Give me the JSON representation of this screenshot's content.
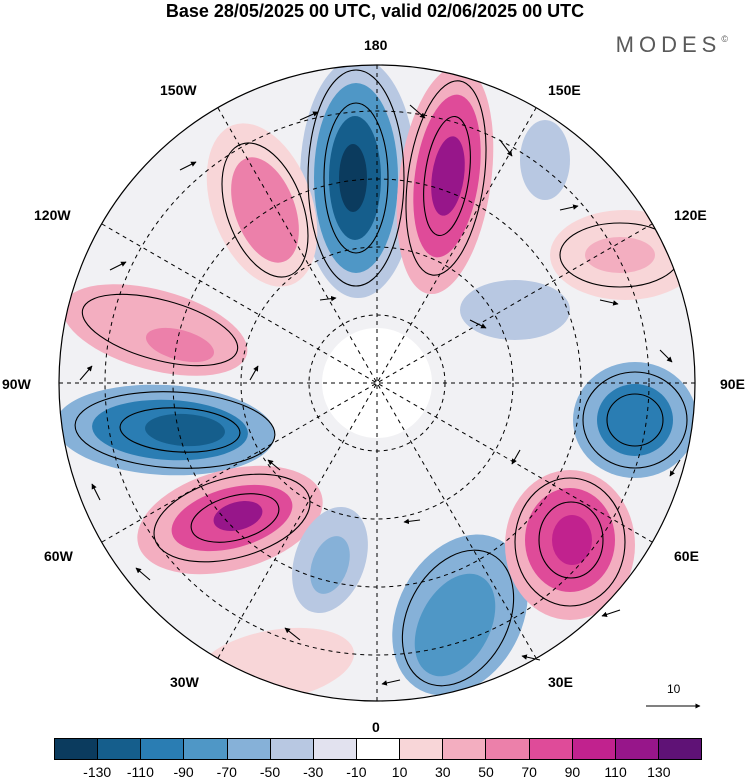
{
  "title": "Base 28/05/2025 00 UTC, valid 02/06/2025 00 UTC",
  "brand": "MODES",
  "brand_mark": "©",
  "longitude_labels": {
    "top": "180",
    "bottom": "0",
    "left": "90W",
    "right": "90E",
    "upper_left_1": "150W",
    "upper_left_2": "120W",
    "upper_right_1": "150E",
    "upper_right_2": "120E",
    "lower_left_1": "60W",
    "lower_left_2": "30W",
    "lower_right_1": "60E",
    "lower_right_2": "30E"
  },
  "reference_vector_label": "10",
  "colorbar": {
    "colors": [
      "#0b3b5e",
      "#155e8c",
      "#2a7db3",
      "#4f97c6",
      "#86b1d8",
      "#b8c8e2",
      "#e2e2ef",
      "#ffffff",
      "#f8d6d8",
      "#f3aec0",
      "#ec80aa",
      "#df4b99",
      "#c1228e",
      "#97168a",
      "#5f1276"
    ],
    "tick_labels": [
      "-130",
      "-110",
      "-90",
      "-70",
      "-50",
      "-30",
      "-10",
      "10",
      "30",
      "50",
      "70",
      "90",
      "110",
      "130"
    ]
  }
}
